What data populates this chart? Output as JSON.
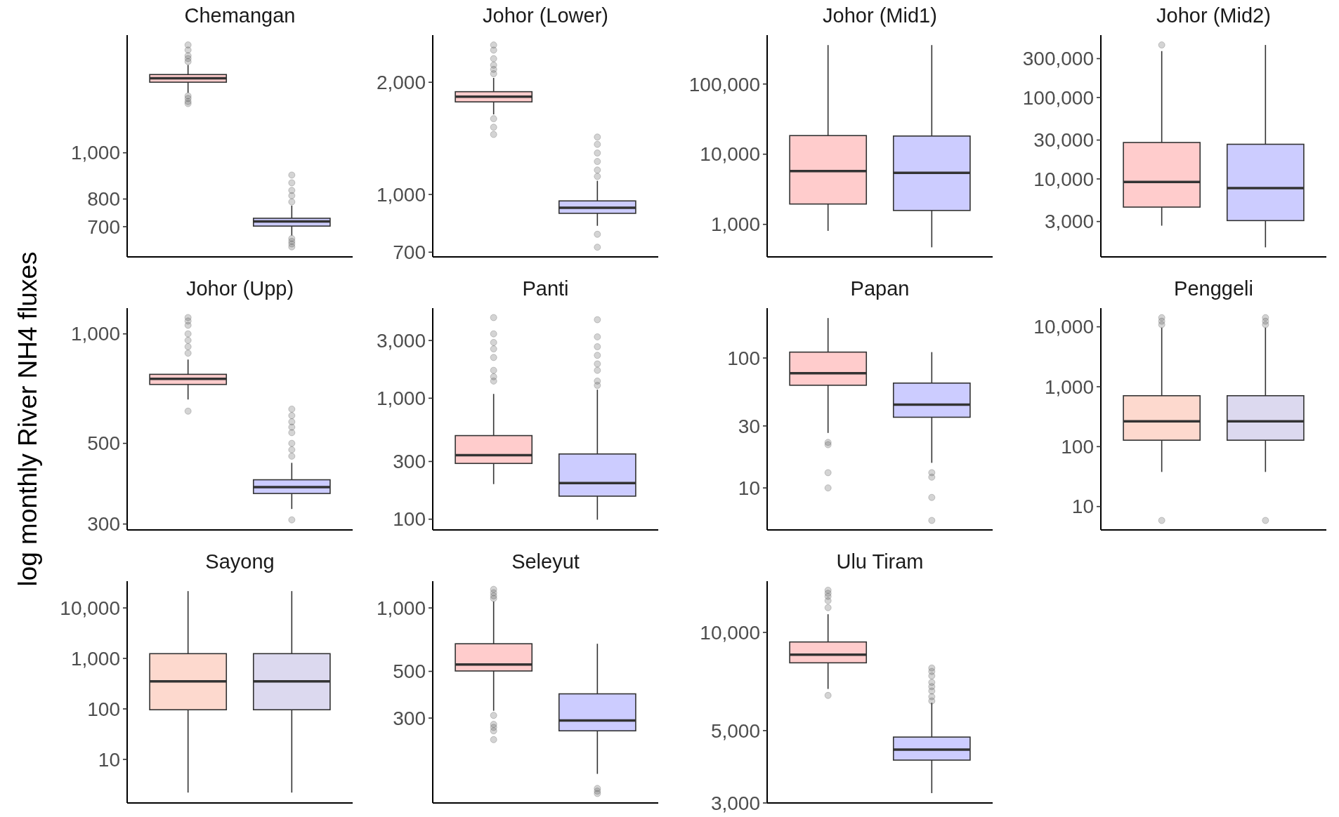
{
  "chart_data": [
    {
      "type": "box",
      "title": "Chemangan",
      "categories": [
        null,
        null
      ],
      "colors": [
        "#ffcccc",
        "#ccccff"
      ],
      "log": true,
      "ylim": [
        605,
        1765
      ],
      "yticks": [
        {
          "value": 700,
          "label": "700"
        },
        {
          "value": 800,
          "label": "800"
        },
        {
          "value": 1000,
          "label": "1,000"
        }
      ],
      "boxes": [
        {
          "low": 1336,
          "q1": 1406,
          "median": 1433,
          "q3": 1459,
          "high": 1528,
          "outliers": [
            1683,
            1642,
            1598,
            1576,
            1553,
            1316,
            1300,
            1281,
            1268
          ]
        },
        {
          "low": 671,
          "q1": 702,
          "median": 718,
          "q3": 729,
          "high": 775,
          "outliers": [
            898,
            865,
            834,
            813,
            789,
            661,
            652,
            644,
            635
          ]
        }
      ]
    },
    {
      "type": "box",
      "title": "Johor (Lower)",
      "categories": [
        null,
        null
      ],
      "colors": [
        "#ffcccc",
        "#ccccff"
      ],
      "log": true,
      "ylim": [
        680,
        2677
      ],
      "yticks": [
        700,
        {
          "value": 1000,
          "label": "1,000"
        },
        {
          "value": 2000,
          "label": "2,000"
        }
      ],
      "boxes": [
        {
          "low": 1640,
          "q1": 1772,
          "median": 1829,
          "q3": 1887,
          "high": 2055,
          "outliers": [
            2518,
            2440,
            2314,
            2224,
            2166,
            2109,
            1597,
            1515,
            1449
          ]
        },
        {
          "low": 824,
          "q1": 890,
          "median": 921,
          "q3": 961,
          "high": 1088,
          "outliers": [
            1426,
            1363,
            1292,
            1226,
            1163,
            1118,
            782,
            722
          ]
        }
      ]
    },
    {
      "type": "box",
      "title": "Johor (Mid1)",
      "categories": [
        null,
        null
      ],
      "colors": [
        "#ffcccc",
        "#ccccff"
      ],
      "log": true,
      "ylim": [
        344,
        498000
      ],
      "yticks": [
        {
          "value": 1000,
          "label": "1,000"
        },
        {
          "value": 10000,
          "label": "10,000"
        },
        {
          "value": 100000,
          "label": "100,000"
        }
      ],
      "boxes": [
        {
          "low": 808,
          "q1": 1950,
          "median": 5740,
          "q3": 18420,
          "high": 359000
        },
        {
          "low": 471,
          "q1": 1578,
          "median": 5430,
          "q3": 18150,
          "high": 359000
        }
      ]
    },
    {
      "type": "box",
      "title": "Johor (Mid2)",
      "categories": [
        null,
        null
      ],
      "colors": [
        "#ffcccc",
        "#ccccff"
      ],
      "log": true,
      "ylim": [
        1104,
        583000
      ],
      "yticks": [
        {
          "value": 3000,
          "label": "3,000"
        },
        {
          "value": 10000,
          "label": "10,000"
        },
        {
          "value": 30000,
          "label": "30,000"
        },
        {
          "value": 100000,
          "label": "100,000"
        },
        {
          "value": 300000,
          "label": "300,000"
        }
      ],
      "boxes": [
        {
          "low": 2667,
          "q1": 4510,
          "median": 9180,
          "q3": 28000,
          "high": 371000,
          "outliers": [
            441000
          ]
        },
        {
          "low": 1446,
          "q1": 3080,
          "median": 7730,
          "q3": 26640,
          "high": 441000
        }
      ]
    },
    {
      "type": "box",
      "title": "Johor (Upp)",
      "ylabel": "log monthly River NH4 fluxes",
      "categories": [
        null,
        null
      ],
      "colors": [
        "#ffcccc",
        "#ccccff"
      ],
      "log": true,
      "ylim": [
        289,
        1177
      ],
      "yticks": [
        300,
        500,
        {
          "value": 1000,
          "label": "1,000"
        }
      ],
      "boxes": [
        {
          "low": 660,
          "q1": 726,
          "median": 752,
          "q3": 774,
          "high": 850,
          "outliers": [
            1109,
            1085,
            1056,
            1000,
            960,
            922,
            885,
            613
          ]
        },
        {
          "low": 330,
          "q1": 364,
          "median": 379,
          "q3": 397,
          "high": 442,
          "outliers": [
            621,
            596,
            573,
            554,
            535,
            500,
            480,
            461,
            308
          ]
        }
      ]
    },
    {
      "type": "box",
      "title": "Panti",
      "categories": [
        null,
        null
      ],
      "colors": [
        "#ffcccc",
        "#ccccff"
      ],
      "log": true,
      "ylim": [
        81.5,
        5555
      ],
      "yticks": [
        100,
        300,
        {
          "value": 1000,
          "label": "1,000"
        },
        {
          "value": 3000,
          "label": "3,000"
        }
      ],
      "boxes": [
        {
          "low": 195,
          "q1": 289,
          "median": 338,
          "q3": 491,
          "high": 1085,
          "outliers": [
            4641,
            3403,
            2890,
            2557,
            2172,
            1700,
            1504,
            1386
          ]
        },
        {
          "low": 99,
          "q1": 155,
          "median": 199,
          "q3": 346,
          "high": 1177,
          "outliers": [
            4456,
            3215,
            2665,
            2262,
            1921,
            1700,
            1386,
            1277
          ]
        }
      ]
    },
    {
      "type": "box",
      "title": "Papan",
      "categories": [
        null,
        null
      ],
      "colors": [
        "#ffcccc",
        "#ccccff"
      ],
      "log": true,
      "ylim": [
        4.75,
        242
      ],
      "yticks": [
        10,
        30,
        100
      ],
      "boxes": [
        {
          "low": 26.5,
          "q1": 61.7,
          "median": 76.4,
          "q3": 111,
          "high": 203,
          "outliers": [
            22.4,
            21.5,
            13.1,
            10
          ]
        },
        {
          "low": 15.6,
          "q1": 35,
          "median": 43.7,
          "q3": 64.1,
          "high": 111,
          "outliers": [
            13.1,
            12.1,
            8.45,
            5.62
          ]
        }
      ]
    },
    {
      "type": "box",
      "title": "Penggeli",
      "categories": [
        null,
        null
      ],
      "colors": [
        "#fdd9ce",
        "#dcd9ef"
      ],
      "log": true,
      "ylim": [
        4.07,
        20500
      ],
      "yticks": [
        10,
        100,
        {
          "value": 1000,
          "label": "1,000"
        },
        {
          "value": 10000,
          "label": "10,000"
        }
      ],
      "boxes": [
        {
          "low": 37.8,
          "q1": 128,
          "median": 265,
          "q3": 708,
          "high": 9680,
          "outliers": [
            14200,
            12410,
            10870,
            5.86
          ]
        },
        {
          "low": 37.8,
          "q1": 128,
          "median": 265,
          "q3": 708,
          "high": 9680,
          "outliers": [
            14200,
            12410,
            10870,
            5.86
          ]
        }
      ]
    },
    {
      "type": "box",
      "title": "Sayong",
      "categories": [
        null,
        null
      ],
      "colors": [
        "#fdd9ce",
        "#dcd9ef"
      ],
      "log": true,
      "ylim": [
        1.37,
        33900
      ],
      "yticks": [
        10,
        100,
        {
          "value": 1000,
          "label": "1,000"
        },
        {
          "value": 10000,
          "label": "10,000"
        }
      ],
      "boxes": [
        {
          "low": 2.2,
          "q1": 96.2,
          "median": 352,
          "q3": 1242,
          "high": 21550
        },
        {
          "low": 2.2,
          "q1": 96.2,
          "median": 352,
          "q3": 1242,
          "high": 21550
        }
      ]
    },
    {
      "type": "box",
      "title": "Seleyut",
      "categories": [
        null,
        null
      ],
      "colors": [
        "#ffcccc",
        "#ccccff"
      ],
      "log": true,
      "ylim": [
        118.6,
        1340
      ],
      "yticks": [
        300,
        500,
        {
          "value": 1000,
          "label": "1,000"
        }
      ],
      "boxes": [
        {
          "low": 325,
          "q1": 502,
          "median": 539,
          "q3": 676,
          "high": 1073,
          "outliers": [
            1225,
            1180,
            1141,
            1109,
            309,
            280,
            271,
            261,
            237
          ]
        },
        {
          "low": 163,
          "q1": 261,
          "median": 292,
          "q3": 391,
          "high": 676,
          "outliers": [
            139,
            135,
            131.5
          ]
        }
      ]
    },
    {
      "type": "box",
      "title": "Ulu Tiram",
      "categories": [
        null,
        null
      ],
      "colors": [
        "#ffcccc",
        "#ccccff"
      ],
      "log": true,
      "ylim": [
        3000,
        14360
      ],
      "yticks": [
        {
          "value": 3000,
          "label": "3,000"
        },
        {
          "value": 5000,
          "label": "5,000"
        },
        {
          "value": 10000,
          "label": "10,000"
        }
      ],
      "boxes": [
        {
          "low": 6710,
          "q1": 8069,
          "median": 8550,
          "q3": 9348,
          "high": 11370,
          "outliers": [
            13470,
            13180,
            12900,
            12510,
            11910,
            6410
          ]
        },
        {
          "low": 3216,
          "q1": 4060,
          "median": 4370,
          "q3": 4777,
          "high": 6085,
          "outliers": [
            7777,
            7590,
            7357,
            7028,
            6819,
            6612,
            6352,
            6163
          ]
        }
      ]
    }
  ]
}
